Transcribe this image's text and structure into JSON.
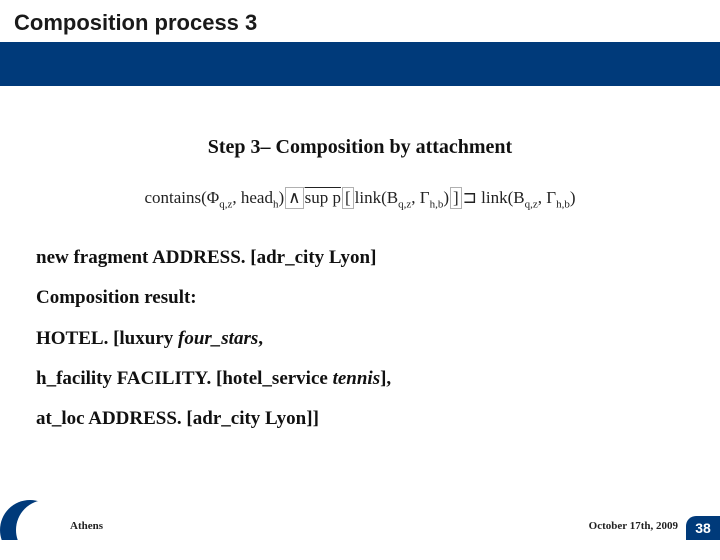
{
  "title": "Composition process 3",
  "step_heading": "Step 3– Composition by attachment",
  "formula": {
    "pieces": [
      {
        "t": "contains",
        "cls": ""
      },
      {
        "t": "(Φ",
        "cls": ""
      },
      {
        "t": "q,z",
        "cls": "sub"
      },
      {
        "t": ", head",
        "cls": ""
      },
      {
        "t": "h",
        "cls": "sub"
      },
      {
        "t": ")",
        "cls": ""
      },
      {
        "t": "∧",
        "cls": "box"
      },
      {
        "t": "sup p",
        "cls": "bar"
      },
      {
        "t": "[",
        "cls": "box"
      },
      {
        "t": "link(Β",
        "cls": ""
      },
      {
        "t": "q,z",
        "cls": "sub"
      },
      {
        "t": ", Γ",
        "cls": ""
      },
      {
        "t": "h,b",
        "cls": "sub"
      },
      {
        "t": ")",
        "cls": ""
      },
      {
        "t": "]",
        "cls": "box"
      },
      {
        "t": "⊐",
        "cls": ""
      },
      {
        "t": " link(Β",
        "cls": ""
      },
      {
        "t": "q,z",
        "cls": "sub"
      },
      {
        "t": ", Γ",
        "cls": ""
      },
      {
        "t": "h,b",
        "cls": "sub"
      },
      {
        "t": ")",
        "cls": ""
      }
    ]
  },
  "lines": [
    {
      "runs": [
        {
          "t": "new fragment  ADDRESS. [adr_city  Lyon]",
          "cls": "bold"
        }
      ]
    },
    {
      "runs": [
        {
          "t": "Composition result:",
          "cls": "bold"
        }
      ]
    },
    {
      "runs": [
        {
          "t": "HOTEL. [luxury ",
          "cls": "bold"
        },
        {
          "t": "four_stars",
          "cls": "ital"
        },
        {
          "t": ",",
          "cls": "bold"
        }
      ]
    },
    {
      "runs": [
        {
          "t": " h_facility   FACILITY. [hotel_service  ",
          "cls": "bold"
        },
        {
          "t": "tennis",
          "cls": "ital"
        },
        {
          "t": "],",
          "cls": "bold"
        }
      ]
    },
    {
      "runs": [
        {
          "t": "at_loc   ADDRESS. [adr_city  Lyon]]",
          "cls": "bold"
        }
      ]
    }
  ],
  "footer": {
    "left": "Athens",
    "right": "October 17th,  2009",
    "page": "38"
  },
  "colors": {
    "brand_blue": "#003a7a",
    "text": "#111111",
    "background": "#ffffff"
  }
}
